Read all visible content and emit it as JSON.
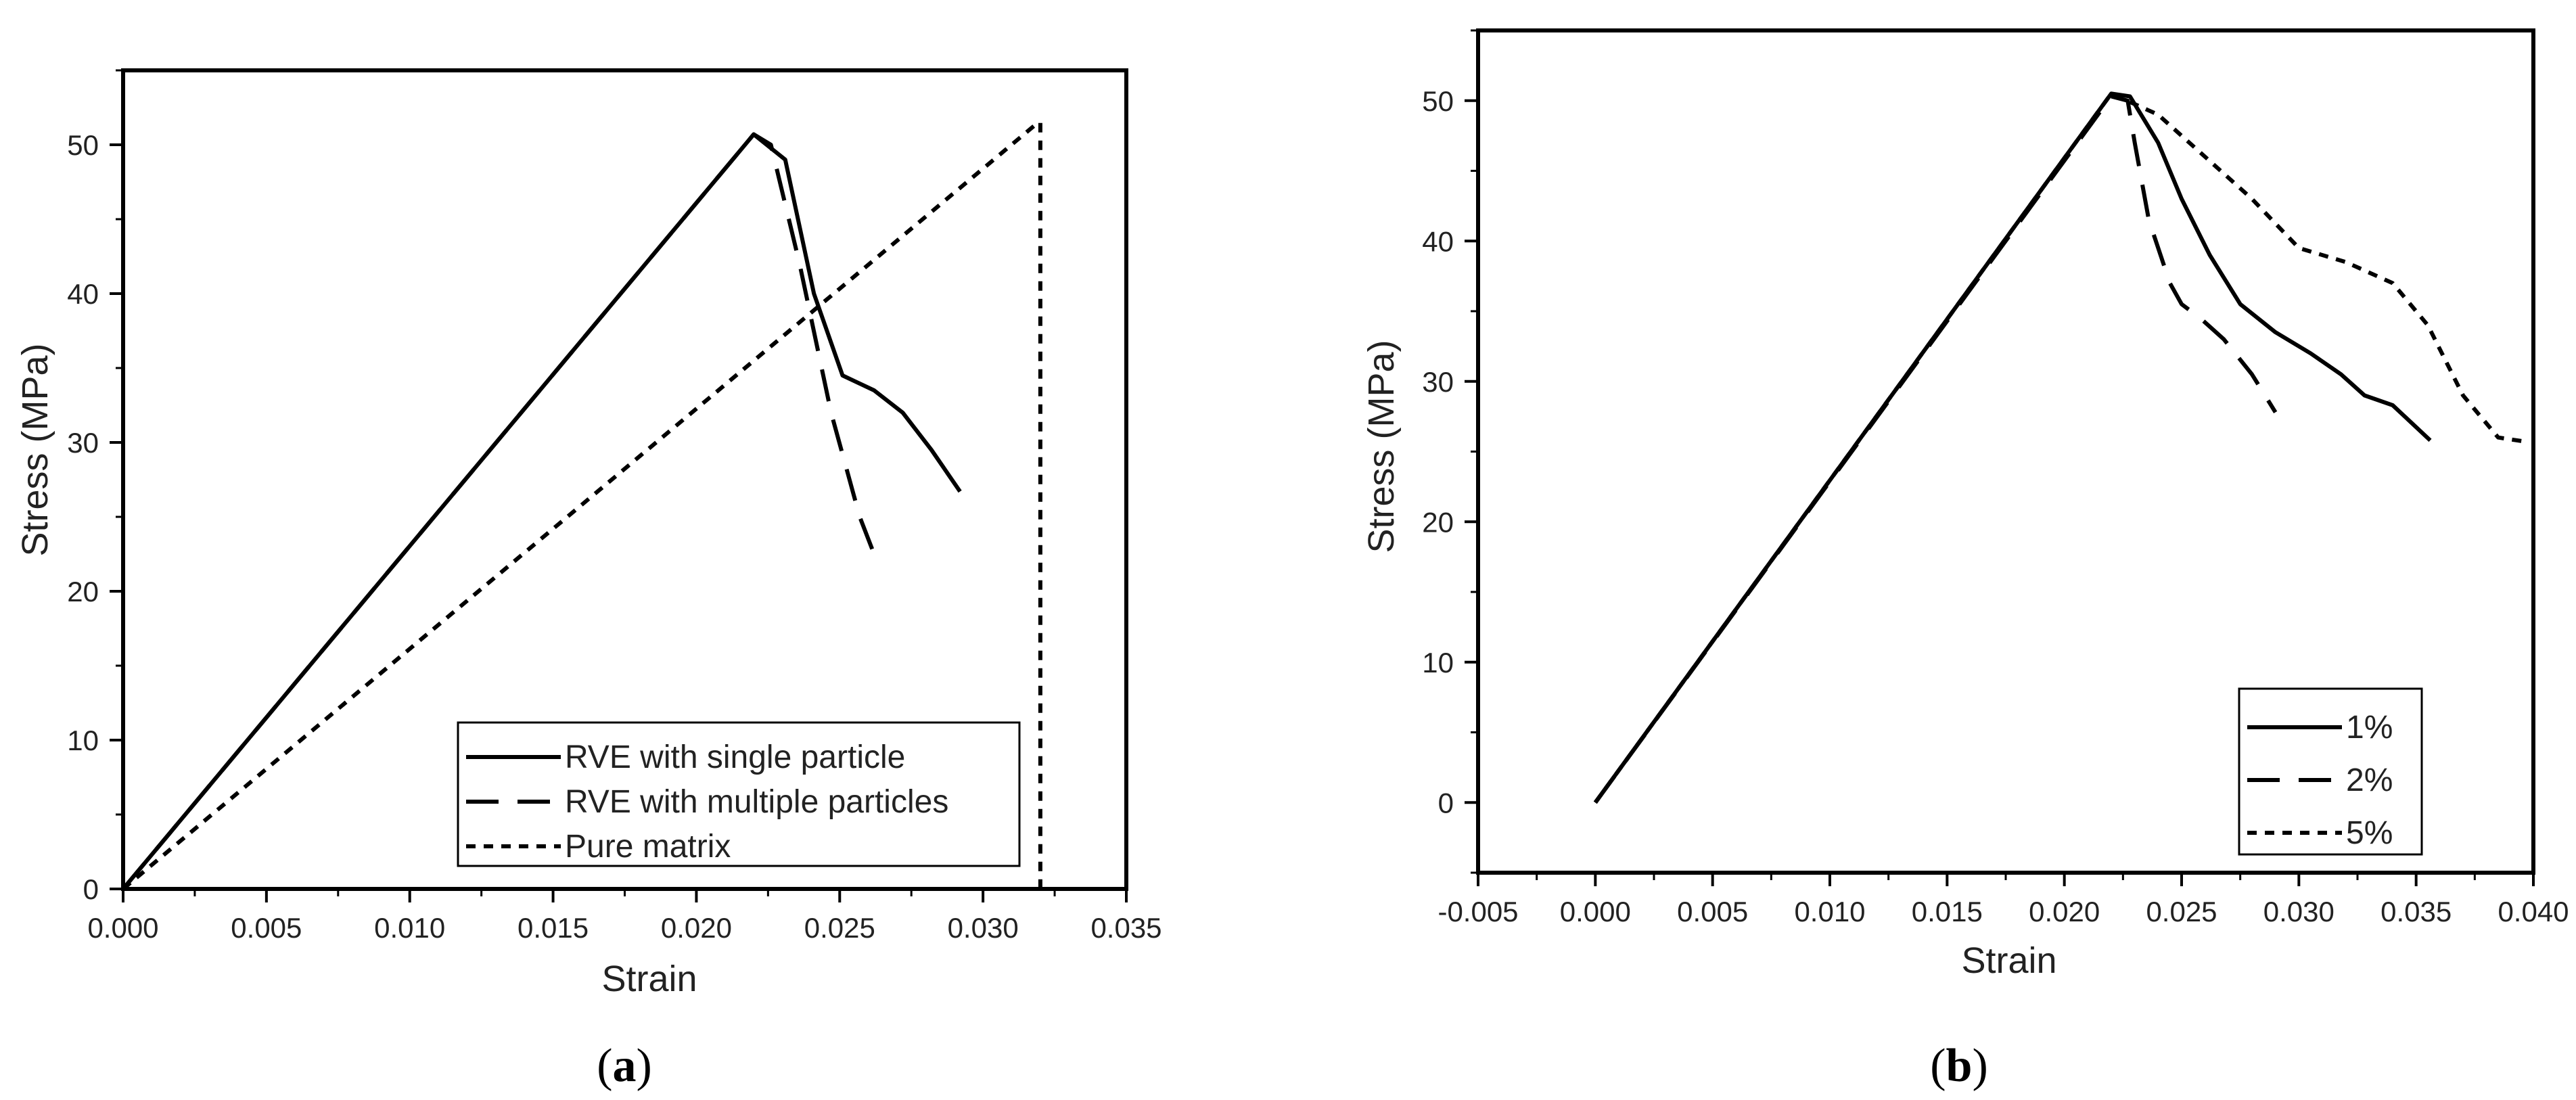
{
  "chart_data": [
    {
      "type": "line",
      "xlabel": "Strain",
      "ylabel": "Stress (MPa)",
      "xlim": [
        0,
        0.035
      ],
      "ylim": [
        0,
        55
      ],
      "xticks": [
        "0.000",
        "0.005",
        "0.010",
        "0.015",
        "0.020",
        "0.025",
        "0.030",
        "0.035"
      ],
      "yticks": [
        "0",
        "10",
        "20",
        "30",
        "40",
        "50"
      ],
      "grid": false,
      "legend_position": "bottom-right",
      "series": [
        {
          "name": "RVE with single particle",
          "style": "solid",
          "x": [
            0,
            0.022,
            0.0231,
            0.0241,
            0.0251,
            0.0262,
            0.0272,
            0.0282,
            0.0292
          ],
          "y": [
            0,
            50.7,
            49.0,
            40.0,
            34.5,
            33.5,
            32.0,
            29.5,
            26.7
          ]
        },
        {
          "name": "RVE with multiple particles",
          "style": "dashed",
          "x": [
            0,
            0.022,
            0.0226,
            0.0236,
            0.0247,
            0.0257,
            0.0262
          ],
          "y": [
            0,
            50.7,
            50.0,
            42.0,
            32.0,
            25.0,
            22.5
          ]
        },
        {
          "name": "Pure matrix",
          "style": "dotted",
          "x": [
            0,
            0.0318,
            0.032,
            0.032
          ],
          "y": [
            0,
            51.3,
            51.5,
            0
          ]
        }
      ],
      "panel_label": "a"
    },
    {
      "type": "line",
      "xlabel": "Strain",
      "ylabel": "Stress (MPa)",
      "xlim": [
        -0.005,
        0.04
      ],
      "ylim": [
        -5,
        55
      ],
      "xticks": [
        "-0.005",
        "0.000",
        "0.005",
        "0.010",
        "0.015",
        "0.020",
        "0.025",
        "0.030",
        "0.035",
        "0.040"
      ],
      "yticks": [
        "0",
        "10",
        "20",
        "30",
        "40",
        "50"
      ],
      "grid": false,
      "legend_position": "bottom-right",
      "series": [
        {
          "name": "1%",
          "style": "solid",
          "x": [
            0,
            0.022,
            0.0228,
            0.024,
            0.025,
            0.0262,
            0.0275,
            0.029,
            0.0305,
            0.0318,
            0.0328,
            0.034,
            0.0356
          ],
          "y": [
            0,
            50.5,
            50.3,
            47.0,
            43.0,
            39.0,
            35.5,
            33.5,
            32.0,
            30.5,
            29.0,
            28.3,
            25.8
          ]
        },
        {
          "name": "2%",
          "style": "dashed",
          "x": [
            0,
            0.022,
            0.0227,
            0.023,
            0.0236,
            0.0245,
            0.025,
            0.0258,
            0.0268,
            0.028,
            0.029
          ],
          "y": [
            0,
            50.3,
            50.0,
            47.0,
            41.5,
            37.0,
            35.5,
            34.5,
            33.0,
            30.5,
            27.8
          ]
        },
        {
          "name": "5%",
          "style": "dotted",
          "x": [
            0,
            0.022,
            0.024,
            0.026,
            0.028,
            0.03,
            0.032,
            0.034,
            0.0355,
            0.037,
            0.0385,
            0.0397
          ],
          "y": [
            0,
            50.5,
            49.0,
            46.0,
            43.0,
            39.5,
            38.5,
            37.0,
            34.0,
            29.0,
            26.0,
            25.7
          ]
        }
      ],
      "panel_label": "b"
    }
  ]
}
